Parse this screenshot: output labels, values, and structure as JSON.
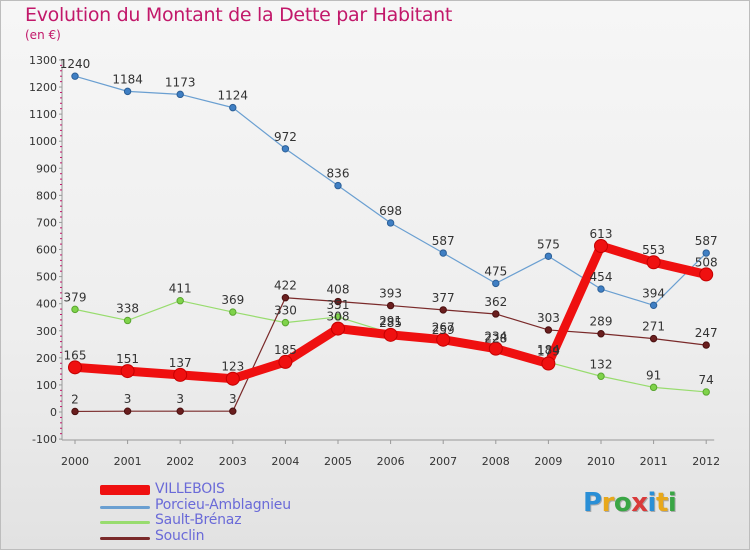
{
  "header": {
    "title": "Evolution du Montant de la Dette par Habitant",
    "subtitle": "(en €)"
  },
  "logo": {
    "text": "Proxiti",
    "letter_colors": [
      "#2a8fd6",
      "#e8a81b",
      "#3aa645",
      "#d93a3a",
      "#2a8fd6",
      "#e8a81b",
      "#3aa645"
    ]
  },
  "chart_data": {
    "type": "line",
    "title": "Evolution du Montant de la Dette par Habitant",
    "subtitle": "(en €)",
    "x": [
      2000,
      2001,
      2002,
      2003,
      2004,
      2005,
      2006,
      2007,
      2008,
      2009,
      2010,
      2011,
      2012
    ],
    "ylim": [
      -100,
      1300
    ],
    "yticks": [
      -100,
      0,
      100,
      200,
      300,
      400,
      500,
      600,
      700,
      800,
      900,
      1000,
      1100,
      1200,
      1300
    ],
    "grid": false,
    "legend_position": "bottom-left",
    "series": [
      {
        "name": "Porcieu-Amblagnieu",
        "color": "#6a9fd1",
        "values": [
          1240,
          1184,
          1173,
          1124,
          972,
          836,
          698,
          587,
          475,
          575,
          454,
          394,
          587
        ]
      },
      {
        "name": "Sault-Brénaz",
        "color": "#98dc6e",
        "values": [
          379,
          338,
          411,
          369,
          330,
          351,
          291,
          259,
          228,
          184,
          132,
          91,
          74
        ]
      },
      {
        "name": "Souclin",
        "color": "#7a2a2a",
        "values": [
          2,
          3,
          3,
          3,
          422,
          408,
          393,
          377,
          362,
          303,
          289,
          271,
          247
        ]
      },
      {
        "name": "VILLEBOIS",
        "color": "#ef1010",
        "values": [
          165,
          151,
          137,
          123,
          185,
          308,
          285,
          267,
          234,
          179,
          613,
          553,
          508
        ]
      }
    ],
    "legend_order": [
      "VILLEBOIS",
      "Porcieu-Amblagnieu",
      "Sault-Brénaz",
      "Souclin"
    ]
  }
}
